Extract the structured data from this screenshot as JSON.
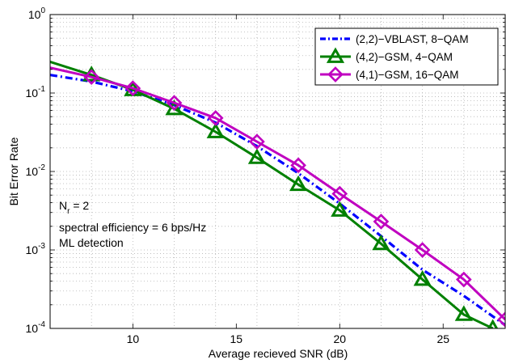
{
  "chart_data": {
    "type": "line",
    "title": "",
    "xlabel": "Average recieved SNR (dB)",
    "ylabel": "Bit Error Rate",
    "xlim": [
      6,
      28
    ],
    "ylim_exp": [
      -4,
      0
    ],
    "yscale": "log",
    "grid": true,
    "legend_position": "top-right",
    "x_ticks": [
      10,
      15,
      20,
      25
    ],
    "y_ticks": [
      {
        "base": "10",
        "exp": "0"
      },
      {
        "base": "10",
        "exp": "-1"
      },
      {
        "base": "10",
        "exp": "-2"
      },
      {
        "base": "10",
        "exp": "-3"
      },
      {
        "base": "10",
        "exp": "-4"
      }
    ],
    "annotations": {
      "nr": {
        "main": "N",
        "sub": "r",
        "rest": " = 2"
      },
      "line2": "spectral efficiency = 6 bps/Hz",
      "line3": "ML detection"
    },
    "series": [
      {
        "name": "(2,2)−VBLAST, 8−QAM",
        "color": "#0000ff",
        "style": "dashdot",
        "marker": "none",
        "x": [
          6,
          8,
          10,
          12,
          14,
          16,
          18,
          20,
          22,
          24,
          26,
          28
        ],
        "y": [
          0.17,
          0.14,
          0.105,
          0.07,
          0.042,
          0.021,
          0.0095,
          0.0039,
          0.0015,
          0.00056,
          0.00026,
          0.00011
        ]
      },
      {
        "name": "(4,2)−GSM, 4−QAM",
        "color": "#008000",
        "style": "solid",
        "marker": "triangle",
        "x": [
          6,
          8,
          10,
          12,
          14,
          16,
          18,
          20,
          22,
          24,
          26,
          27.4
        ],
        "y": [
          0.25,
          0.17,
          0.11,
          0.063,
          0.032,
          0.015,
          0.0068,
          0.0032,
          0.0012,
          0.00042,
          0.00015,
          0.0001
        ]
      },
      {
        "name": "(4,1)−GSM, 16−QAM",
        "color": "#c000c0",
        "style": "solid",
        "marker": "diamond",
        "x": [
          6,
          8,
          10,
          12,
          14,
          16,
          18,
          20,
          22,
          24,
          26,
          28
        ],
        "y": [
          0.21,
          0.16,
          0.115,
          0.075,
          0.048,
          0.024,
          0.012,
          0.0052,
          0.0023,
          0.001,
          0.00042,
          0.00013
        ]
      }
    ]
  }
}
